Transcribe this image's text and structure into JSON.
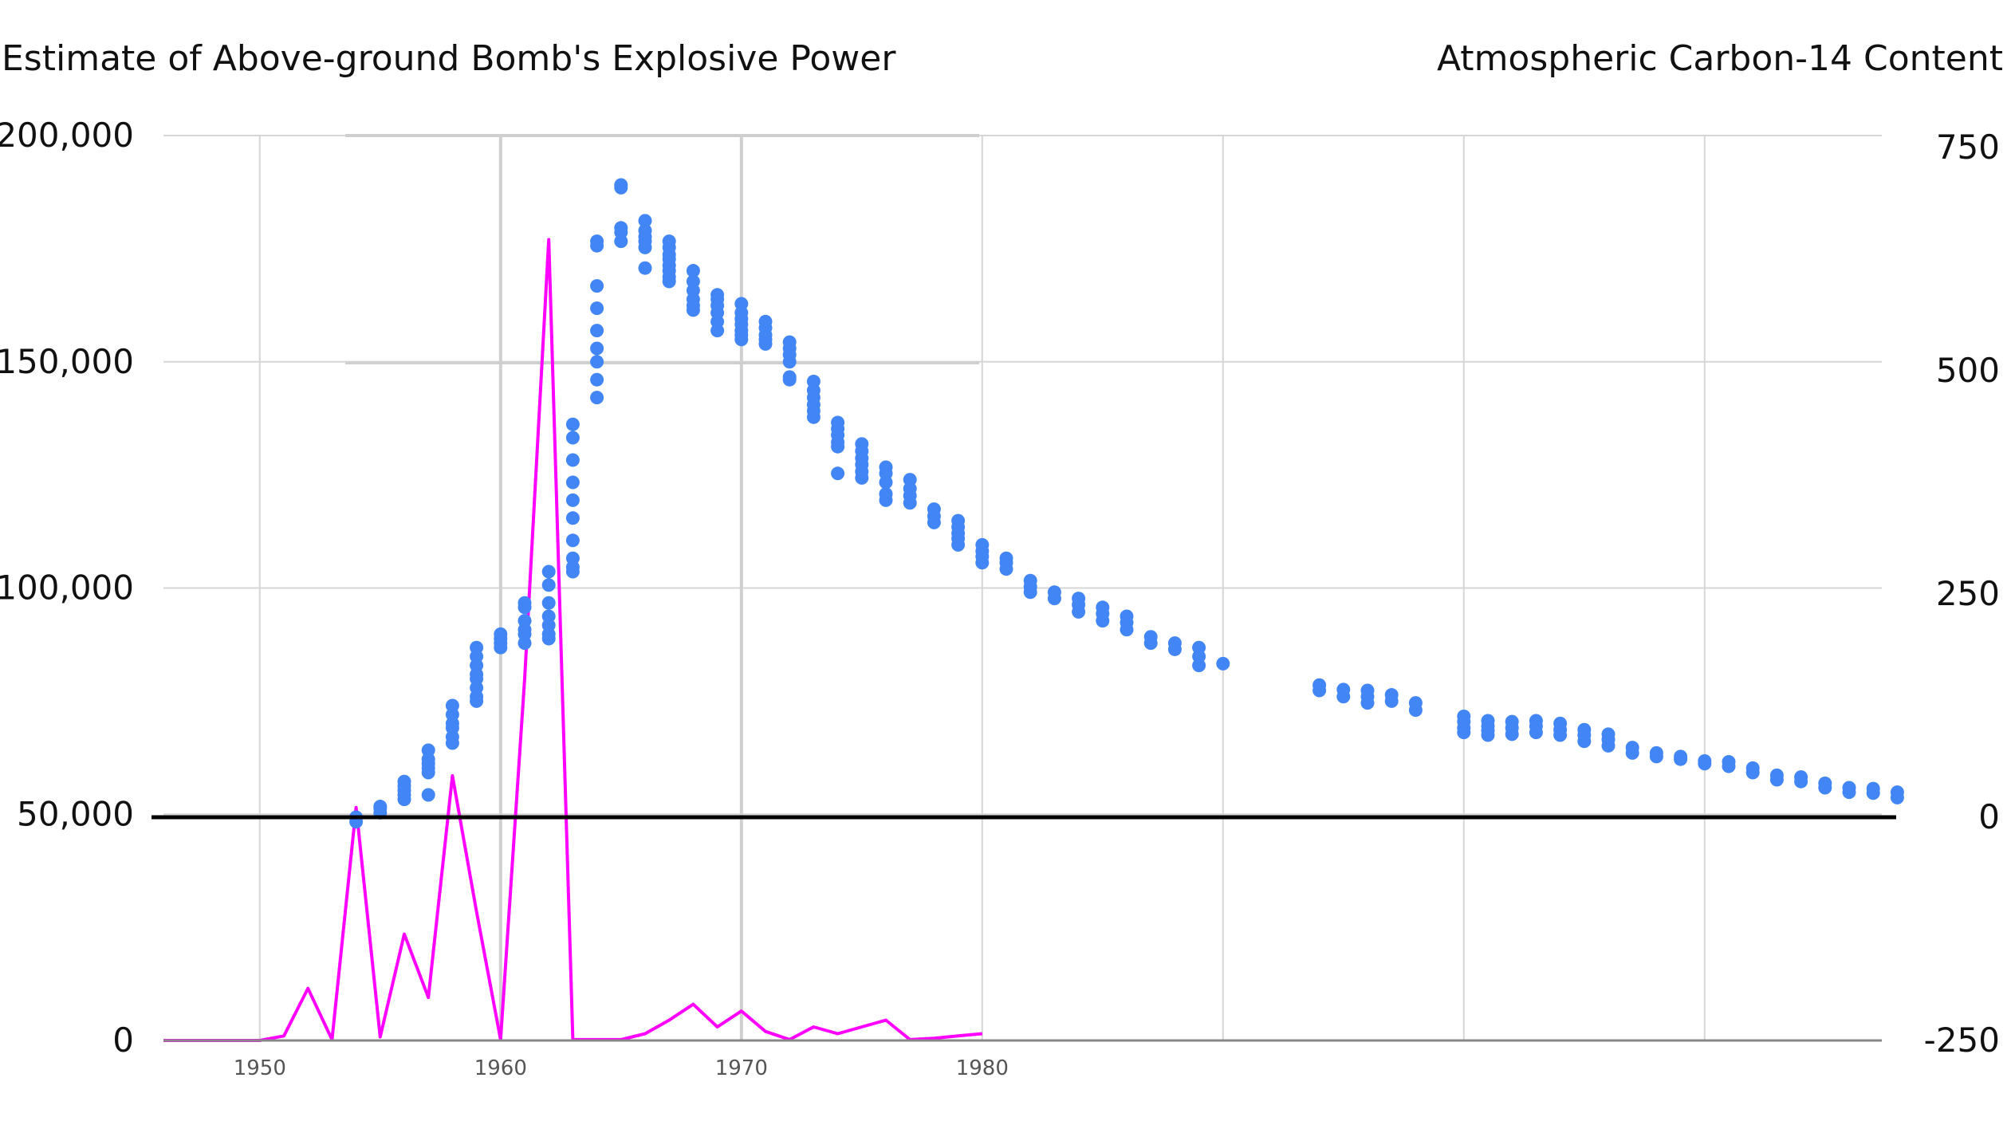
{
  "chart_data": {
    "type": "line+scatter",
    "left_axis_title": "Estimate of Above-ground Bomb's Explosive Power",
    "right_axis_title": "Atmospheric Carbon-14 Content",
    "left_y_ticks": [
      "0",
      "50,000",
      "100,000",
      "150,000",
      "200,000"
    ],
    "right_y_ticks": [
      "-250",
      "0",
      "250",
      "500",
      "750"
    ],
    "x_ticks": [
      "1950",
      "1960",
      "1970",
      "1980"
    ],
    "ylim_left": [
      0,
      200000
    ],
    "ylim_right": [
      -250,
      750
    ],
    "xlim": [
      1946,
      2018
    ],
    "colors": {
      "line": "#ff00ff",
      "dots": "#4285f4",
      "baseline": "#000000"
    },
    "series": [
      {
        "type": "line",
        "axis": "left",
        "x": [
          1946,
          1947,
          1948,
          1949,
          1950,
          1951,
          1952,
          1953,
          1954,
          1955,
          1956,
          1957,
          1958,
          1959,
          1960,
          1961,
          1962,
          1963,
          1964,
          1965,
          1966,
          1967,
          1968,
          1969,
          1970,
          1971,
          1972,
          1973,
          1974,
          1975,
          1976,
          1977,
          1978,
          1979,
          1980
        ],
        "values": [
          0,
          0,
          0,
          0,
          0,
          1000,
          11500,
          200,
          51500,
          800,
          23500,
          9500,
          58500,
          28500,
          200,
          80000,
          177000,
          200,
          200,
          200,
          1500,
          4500,
          8000,
          3000,
          6500,
          2000,
          200,
          3000,
          1500,
          3000,
          4500,
          200,
          500,
          1000,
          1500
        ]
      },
      {
        "type": "scatter",
        "axis": "right",
        "points": [
          [
            1954,
            -5
          ],
          [
            1954,
            0
          ],
          [
            1955,
            5
          ],
          [
            1955,
            10
          ],
          [
            1955,
            12
          ],
          [
            1956,
            20
          ],
          [
            1956,
            25
          ],
          [
            1956,
            30
          ],
          [
            1956,
            35
          ],
          [
            1956,
            40
          ],
          [
            1957,
            25
          ],
          [
            1957,
            50
          ],
          [
            1957,
            55
          ],
          [
            1957,
            60
          ],
          [
            1957,
            65
          ],
          [
            1957,
            75
          ],
          [
            1958,
            83
          ],
          [
            1958,
            90
          ],
          [
            1958,
            100
          ],
          [
            1958,
            105
          ],
          [
            1958,
            115
          ],
          [
            1958,
            125
          ],
          [
            1959,
            130
          ],
          [
            1959,
            135
          ],
          [
            1959,
            145
          ],
          [
            1959,
            155
          ],
          [
            1959,
            160
          ],
          [
            1959,
            170
          ],
          [
            1959,
            180
          ],
          [
            1959,
            190
          ],
          [
            1960,
            190
          ],
          [
            1960,
            195
          ],
          [
            1960,
            200
          ],
          [
            1960,
            205
          ],
          [
            1961,
            195
          ],
          [
            1961,
            205
          ],
          [
            1961,
            210
          ],
          [
            1961,
            220
          ],
          [
            1961,
            235
          ],
          [
            1961,
            240
          ],
          [
            1962,
            200
          ],
          [
            1962,
            205
          ],
          [
            1962,
            215
          ],
          [
            1962,
            225
          ],
          [
            1962,
            240
          ],
          [
            1962,
            260
          ],
          [
            1962,
            275
          ],
          [
            1963,
            275
          ],
          [
            1963,
            280
          ],
          [
            1963,
            290
          ],
          [
            1963,
            310
          ],
          [
            1963,
            335
          ],
          [
            1963,
            355
          ],
          [
            1963,
            375
          ],
          [
            1963,
            400
          ],
          [
            1963,
            425
          ],
          [
            1963,
            440
          ],
          [
            1964,
            470
          ],
          [
            1964,
            490
          ],
          [
            1964,
            510
          ],
          [
            1964,
            525
          ],
          [
            1964,
            545
          ],
          [
            1964,
            570
          ],
          [
            1964,
            595
          ],
          [
            1964,
            640
          ],
          [
            1964,
            645
          ],
          [
            1965,
            645
          ],
          [
            1965,
            655
          ],
          [
            1965,
            660
          ],
          [
            1965,
            705
          ],
          [
            1965,
            708
          ],
          [
            1966,
            615
          ],
          [
            1966,
            638
          ],
          [
            1966,
            645
          ],
          [
            1966,
            650
          ],
          [
            1966,
            657
          ],
          [
            1966,
            668
          ],
          [
            1967,
            600
          ],
          [
            1967,
            605
          ],
          [
            1967,
            612
          ],
          [
            1967,
            618
          ],
          [
            1967,
            625
          ],
          [
            1967,
            630
          ],
          [
            1967,
            638
          ],
          [
            1967,
            645
          ],
          [
            1968,
            568
          ],
          [
            1968,
            573
          ],
          [
            1968,
            580
          ],
          [
            1968,
            590
          ],
          [
            1968,
            600
          ],
          [
            1968,
            612
          ],
          [
            1969,
            545
          ],
          [
            1969,
            555
          ],
          [
            1969,
            565
          ],
          [
            1969,
            573
          ],
          [
            1969,
            580
          ],
          [
            1969,
            585
          ],
          [
            1970,
            535
          ],
          [
            1970,
            540
          ],
          [
            1970,
            545
          ],
          [
            1970,
            552
          ],
          [
            1970,
            558
          ],
          [
            1970,
            565
          ],
          [
            1970,
            575
          ],
          [
            1971,
            530
          ],
          [
            1971,
            535
          ],
          [
            1971,
            540
          ],
          [
            1971,
            548
          ],
          [
            1971,
            555
          ],
          [
            1972,
            490
          ],
          [
            1972,
            493
          ],
          [
            1972,
            510
          ],
          [
            1972,
            518
          ],
          [
            1972,
            525
          ],
          [
            1972,
            532
          ],
          [
            1973,
            448
          ],
          [
            1973,
            455
          ],
          [
            1973,
            462
          ],
          [
            1973,
            470
          ],
          [
            1973,
            478
          ],
          [
            1973,
            488
          ],
          [
            1974,
            385
          ],
          [
            1974,
            415
          ],
          [
            1974,
            420
          ],
          [
            1974,
            428
          ],
          [
            1974,
            435
          ],
          [
            1974,
            442
          ],
          [
            1975,
            380
          ],
          [
            1975,
            387
          ],
          [
            1975,
            395
          ],
          [
            1975,
            402
          ],
          [
            1975,
            410
          ],
          [
            1975,
            418
          ],
          [
            1976,
            355
          ],
          [
            1976,
            362
          ],
          [
            1976,
            375
          ],
          [
            1976,
            385
          ],
          [
            1976,
            392
          ],
          [
            1977,
            352
          ],
          [
            1977,
            360
          ],
          [
            1977,
            368
          ],
          [
            1977,
            378
          ],
          [
            1978,
            330
          ],
          [
            1978,
            337
          ],
          [
            1978,
            345
          ],
          [
            1979,
            305
          ],
          [
            1979,
            312
          ],
          [
            1979,
            318
          ],
          [
            1979,
            325
          ],
          [
            1979,
            332
          ],
          [
            1980,
            285
          ],
          [
            1980,
            292
          ],
          [
            1980,
            298
          ],
          [
            1980,
            305
          ],
          [
            1981,
            278
          ],
          [
            1981,
            285
          ],
          [
            1981,
            290
          ],
          [
            1982,
            252
          ],
          [
            1982,
            258
          ],
          [
            1982,
            265
          ],
          [
            1983,
            245
          ],
          [
            1983,
            252
          ],
          [
            1984,
            230
          ],
          [
            1984,
            238
          ],
          [
            1984,
            245
          ],
          [
            1985,
            220
          ],
          [
            1985,
            228
          ],
          [
            1985,
            235
          ],
          [
            1986,
            210
          ],
          [
            1986,
            218
          ],
          [
            1986,
            225
          ],
          [
            1987,
            195
          ],
          [
            1987,
            202
          ],
          [
            1988,
            188
          ],
          [
            1988,
            195
          ],
          [
            1989,
            170
          ],
          [
            1989,
            180
          ],
          [
            1989,
            190
          ],
          [
            1990,
            172
          ],
          [
            1994,
            142
          ],
          [
            1994,
            148
          ],
          [
            1995,
            135
          ],
          [
            1995,
            143
          ],
          [
            1996,
            128
          ],
          [
            1996,
            135
          ],
          [
            1996,
            142
          ],
          [
            1997,
            130
          ],
          [
            1997,
            137
          ],
          [
            1998,
            120
          ],
          [
            1998,
            128
          ],
          [
            2000,
            95
          ],
          [
            2000,
            100
          ],
          [
            2000,
            107
          ],
          [
            2000,
            113
          ],
          [
            2001,
            92
          ],
          [
            2001,
            97
          ],
          [
            2001,
            102
          ],
          [
            2001,
            108
          ],
          [
            2002,
            93
          ],
          [
            2002,
            100
          ],
          [
            2002,
            107
          ],
          [
            2003,
            95
          ],
          [
            2003,
            102
          ],
          [
            2003,
            108
          ],
          [
            2004,
            92
          ],
          [
            2004,
            98
          ],
          [
            2004,
            105
          ],
          [
            2005,
            85
          ],
          [
            2005,
            92
          ],
          [
            2005,
            98
          ],
          [
            2006,
            80
          ],
          [
            2006,
            87
          ],
          [
            2006,
            93
          ],
          [
            2007,
            72
          ],
          [
            2007,
            78
          ],
          [
            2008,
            68
          ],
          [
            2008,
            72
          ],
          [
            2009,
            65
          ],
          [
            2009,
            68
          ],
          [
            2010,
            60
          ],
          [
            2010,
            63
          ],
          [
            2011,
            57
          ],
          [
            2011,
            62
          ],
          [
            2012,
            50
          ],
          [
            2012,
            55
          ],
          [
            2013,
            42
          ],
          [
            2013,
            47
          ],
          [
            2014,
            40
          ],
          [
            2014,
            45
          ],
          [
            2015,
            33
          ],
          [
            2015,
            38
          ],
          [
            2016,
            28
          ],
          [
            2016,
            33
          ],
          [
            2017,
            27
          ],
          [
            2017,
            32
          ],
          [
            2018,
            22
          ],
          [
            2018,
            28
          ]
        ]
      }
    ],
    "grid": true,
    "legend": "none"
  }
}
